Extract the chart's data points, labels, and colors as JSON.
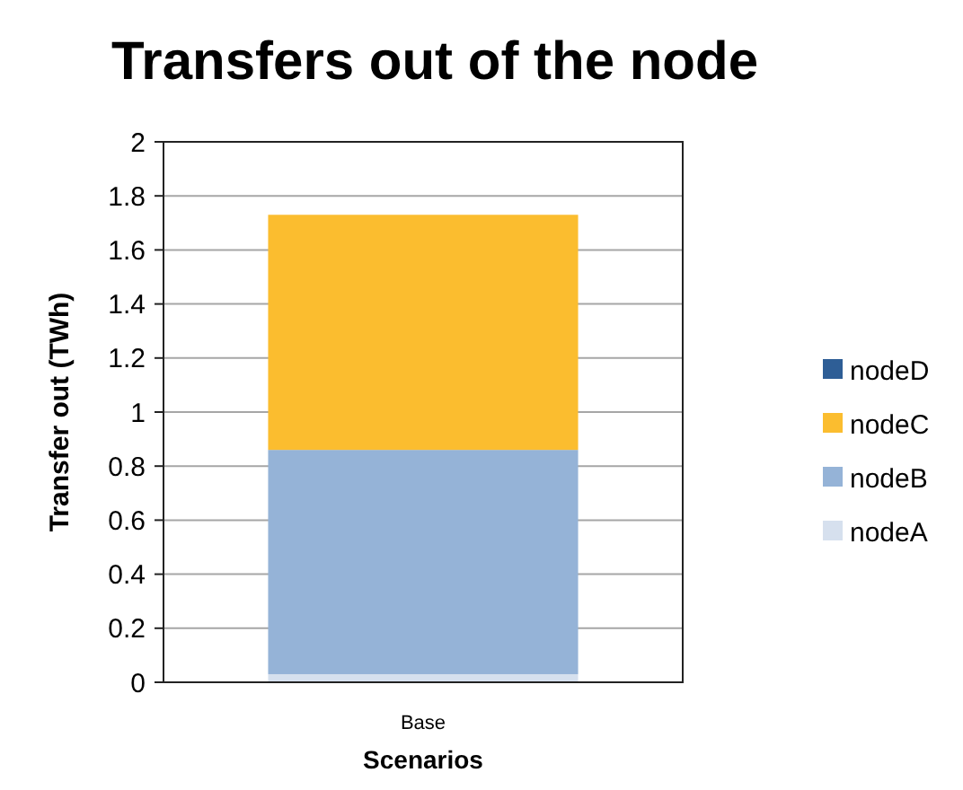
{
  "chart_data": {
    "type": "bar",
    "title": "Transfers out of the node",
    "xlabel": "Scenarios",
    "ylabel": "Transfer out (TWh)",
    "categories": [
      "Base"
    ],
    "stacked": true,
    "series": [
      {
        "name": "nodeA",
        "color": "#d6e0ee",
        "values": [
          0.03
        ]
      },
      {
        "name": "nodeB",
        "color": "#95b3d7",
        "values": [
          0.83
        ]
      },
      {
        "name": "nodeC",
        "color": "#fbbd2f",
        "values": [
          0.87
        ]
      },
      {
        "name": "nodeD",
        "color": "#2e5e96",
        "values": [
          0
        ]
      }
    ],
    "ylim": [
      0,
      2
    ],
    "yticks": [
      0,
      0.2,
      0.4,
      0.6,
      0.8,
      1,
      1.2,
      1.4,
      1.6,
      1.8,
      2
    ],
    "grid": "y",
    "legend": "right"
  }
}
